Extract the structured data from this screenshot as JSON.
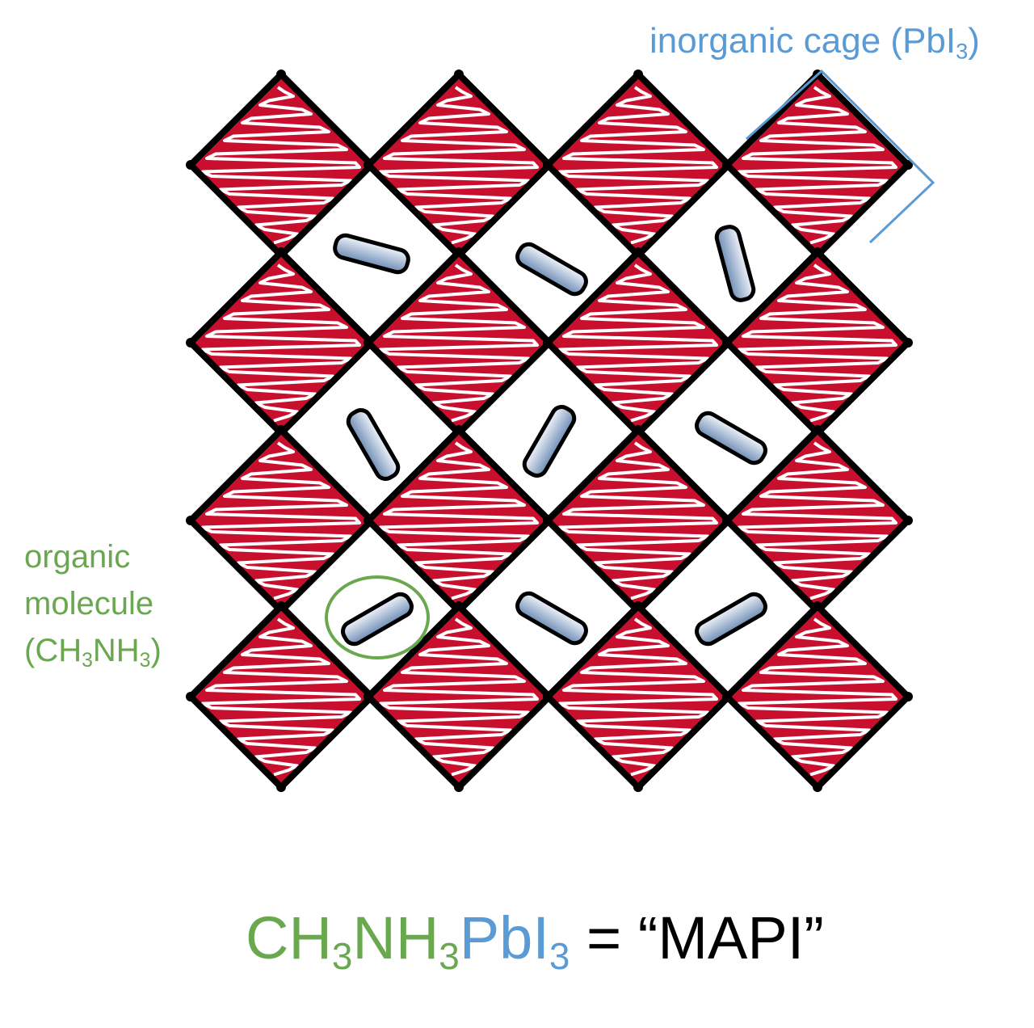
{
  "labels": {
    "cage": {
      "text": "inorganic cage (PbI",
      "sub": "3",
      "close": ")"
    },
    "organic": {
      "line1": "organic",
      "line2": "molecule",
      "line3_a": "(CH",
      "line3_sub1": "3",
      "line3_b": "NH",
      "line3_sub2": "3",
      "line3_c": ")"
    }
  },
  "formula": {
    "ch": "CH",
    "sub1": "3",
    "nh": "NH",
    "sub2": "3",
    "pbi": "PbI",
    "sub3": "3",
    "equals": " = ",
    "name": "“MAPI”"
  },
  "colors": {
    "cage_blue": "#5b9bd5",
    "organic_green": "#6aa84f",
    "octahedron_red": "#c8102e",
    "molecule_fill": "#6e8db5"
  },
  "molecule_angles_deg": [
    15,
    30,
    75,
    60,
    -60,
    30,
    -30,
    30,
    -30,
    -15
  ]
}
